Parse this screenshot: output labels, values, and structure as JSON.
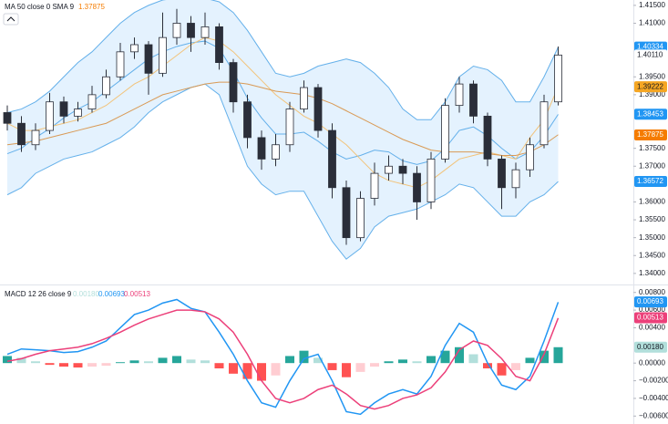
{
  "chart_data": [
    {
      "type": "candlestick",
      "title": "MA 50 close 0 SMA 9",
      "ylim": [
        1.3369,
        1.4165
      ],
      "yticks": [
        {
          "value": 1.415,
          "label": "1.41500"
        },
        {
          "value": 1.41,
          "label": "1.41000"
        },
        {
          "value": 1.395,
          "label": "1.39500"
        },
        {
          "value": 1.39,
          "label": "1.39000"
        },
        {
          "value": 1.375,
          "label": "1.37500"
        },
        {
          "value": 1.37,
          "label": "1.37000"
        },
        {
          "value": 1.36,
          "label": "1.36000"
        },
        {
          "value": 1.355,
          "label": "1.35500"
        },
        {
          "value": 1.35,
          "label": "1.35000"
        },
        {
          "value": 1.345,
          "label": "1.34500"
        },
        {
          "value": 1.34,
          "label": "1.34000"
        }
      ],
      "up_color": "#ffffff",
      "down_color": "#2a2e39",
      "outline_color": "#2a2e39",
      "open": [
        1.385,
        1.382,
        1.376,
        1.38,
        1.388,
        1.384,
        1.386,
        1.39,
        1.395,
        1.402,
        1.404,
        1.396,
        1.406,
        1.41,
        1.406,
        1.409,
        1.399,
        1.388,
        1.378,
        1.372,
        1.376,
        1.386,
        1.392,
        1.38,
        1.364,
        1.35,
        1.361,
        1.368,
        1.37,
        1.368,
        1.36,
        1.372,
        1.387,
        1.393,
        1.384,
        1.372,
        1.364,
        1.369,
        1.376,
        1.388
      ],
      "high": [
        1.387,
        1.384,
        1.382,
        1.3905,
        1.3895,
        1.388,
        1.3925,
        1.397,
        1.4045,
        1.406,
        1.405,
        1.413,
        1.414,
        1.412,
        1.413,
        1.41,
        1.4,
        1.39,
        1.38,
        1.379,
        1.388,
        1.394,
        1.393,
        1.382,
        1.366,
        1.363,
        1.371,
        1.373,
        1.372,
        1.37,
        1.374,
        1.389,
        1.395,
        1.394,
        1.385,
        1.373,
        1.371,
        1.378,
        1.39,
        1.4035
      ],
      "low": [
        1.38,
        1.374,
        1.3745,
        1.379,
        1.382,
        1.3825,
        1.385,
        1.389,
        1.394,
        1.4,
        1.39,
        1.395,
        1.404,
        1.402,
        1.404,
        1.397,
        1.385,
        1.375,
        1.369,
        1.37,
        1.374,
        1.385,
        1.378,
        1.361,
        1.348,
        1.349,
        1.359,
        1.366,
        1.365,
        1.355,
        1.358,
        1.371,
        1.385,
        1.382,
        1.37,
        1.358,
        1.361,
        1.367,
        1.375,
        1.387
      ],
      "close": [
        1.382,
        1.376,
        1.38,
        1.388,
        1.384,
        1.386,
        1.39,
        1.395,
        1.402,
        1.404,
        1.396,
        1.406,
        1.41,
        1.406,
        1.409,
        1.399,
        1.388,
        1.378,
        1.372,
        1.376,
        1.386,
        1.392,
        1.38,
        1.364,
        1.35,
        1.361,
        1.368,
        1.37,
        1.368,
        1.36,
        1.372,
        1.387,
        1.393,
        1.384,
        1.372,
        1.364,
        1.369,
        1.376,
        1.388,
        1.4011
      ],
      "band_fill": "rgba(33,150,243,0.12)",
      "series": [
        {
          "color": "#64b0ea",
          "values": [
            1.385,
            1.386,
            1.388,
            1.391,
            1.395,
            1.399,
            1.402,
            1.406,
            1.41,
            1.413,
            1.415,
            1.4165,
            1.417,
            1.417,
            1.417,
            1.416,
            1.413,
            1.408,
            1.402,
            1.396,
            1.395,
            1.396,
            1.398,
            1.399,
            1.4,
            1.399,
            1.396,
            1.392,
            1.386,
            1.383,
            1.383,
            1.388,
            1.395,
            1.398,
            1.397,
            1.394,
            1.388,
            1.388,
            1.395,
            1.4033
          ]
        },
        {
          "color": "#64b0ea",
          "values": [
            1.362,
            1.364,
            1.368,
            1.37,
            1.372,
            1.373,
            1.374,
            1.376,
            1.378,
            1.381,
            1.385,
            1.388,
            1.39,
            1.392,
            1.393,
            1.39,
            1.38,
            1.37,
            1.365,
            1.362,
            1.363,
            1.363,
            1.356,
            1.349,
            1.344,
            1.347,
            1.353,
            1.356,
            1.357,
            1.358,
            1.36,
            1.362,
            1.365,
            1.364,
            1.36,
            1.356,
            1.356,
            1.36,
            1.362,
            1.3657
          ]
        },
        {
          "color": "#64b0ea",
          "values": [
            1.3735,
            1.375,
            1.378,
            1.3805,
            1.3835,
            1.386,
            1.388,
            1.391,
            1.394,
            1.397,
            1.4,
            1.402,
            1.4035,
            1.4045,
            1.405,
            1.403,
            1.3965,
            1.389,
            1.3835,
            1.379,
            1.379,
            1.3795,
            1.377,
            1.374,
            1.372,
            1.373,
            1.3745,
            1.374,
            1.3715,
            1.3705,
            1.3715,
            1.375,
            1.38,
            1.381,
            1.3785,
            1.375,
            1.372,
            1.374,
            1.3785,
            1.3845
          ]
        },
        {
          "color": "#f2c37a",
          "values": [
            1.382,
            1.38,
            1.38,
            1.381,
            1.382,
            1.383,
            1.385,
            1.387,
            1.39,
            1.393,
            1.395,
            1.398,
            1.401,
            1.404,
            1.406,
            1.405,
            1.402,
            1.398,
            1.394,
            1.39,
            1.387,
            1.384,
            1.382,
            1.379,
            1.376,
            1.372,
            1.368,
            1.366,
            1.365,
            1.364,
            1.366,
            1.369,
            1.372,
            1.373,
            1.374,
            1.373,
            1.372,
            1.378,
            1.383,
            1.3922
          ]
        },
        {
          "color": "#d99a55",
          "values": [
            1.376,
            1.3765,
            1.377,
            1.378,
            1.379,
            1.38,
            1.381,
            1.382,
            1.384,
            1.386,
            1.388,
            1.39,
            1.391,
            1.392,
            1.393,
            1.3935,
            1.3935,
            1.393,
            1.392,
            1.391,
            1.3905,
            1.39,
            1.389,
            1.3875,
            1.3855,
            1.3835,
            1.3815,
            1.3795,
            1.3775,
            1.376,
            1.3745,
            1.374,
            1.374,
            1.374,
            1.3735,
            1.373,
            1.373,
            1.374,
            1.376,
            1.3788
          ]
        }
      ],
      "price_tags": [
        {
          "value": 1.40334,
          "label": "1.40334",
          "color": "#2196f3",
          "text_color": "#ffffff"
        },
        {
          "value": 1.4011,
          "label": "1.40110",
          "color": "#ffffff",
          "text_color": "#131722"
        },
        {
          "value": 1.39222,
          "label": "1.39222",
          "color": "#f5a623",
          "text_color": "#131722"
        },
        {
          "value": 1.38453,
          "label": "1.38453",
          "color": "#2196f3",
          "text_color": "#ffffff"
        },
        {
          "value": 1.37875,
          "label": "1.37875",
          "color": "#f57c00",
          "text_color": "#ffffff"
        },
        {
          "value": 1.36572,
          "label": "1.36572",
          "color": "#2196f3",
          "text_color": "#ffffff"
        }
      ],
      "legend_values": [
        4
      ]
    },
    {
      "type": "macd",
      "title": "MACD 12 26 close 9",
      "ylim": [
        -0.0069,
        0.0088
      ],
      "yticks": [
        {
          "value": 0.008,
          "label": "0.00800"
        },
        {
          "value": 0.006,
          "label": "0.00600"
        },
        {
          "value": 0.004,
          "label": "0.00400"
        },
        {
          "value": 0,
          "label": "0.00000"
        },
        {
          "value": -0.002,
          "label": "−0.00200"
        },
        {
          "value": -0.004,
          "label": "−0.00400"
        },
        {
          "value": -0.006,
          "label": "−0.00600"
        }
      ],
      "histogram": [
        0.0008,
        0.0006,
        0.0002,
        -0.0002,
        -0.0004,
        -0.0005,
        -0.0004,
        -0.0003,
        0.0001,
        0.0003,
        0.0002,
        0.0006,
        0.0008,
        0.0004,
        0.0003,
        -0.0006,
        -0.0012,
        -0.0018,
        -0.002,
        -0.0014,
        0.0008,
        0.0014,
        0.0006,
        -0.0008,
        -0.0016,
        -0.001,
        -0.0004,
        0.0002,
        0.0004,
        0.0002,
        0.0008,
        0.0014,
        0.0018,
        0.001,
        -0.0006,
        -0.0014,
        -0.0008,
        0.0006,
        0.0014,
        0.0018
      ],
      "histogram_colors": [
        "#26a69a",
        "#b2dfdb",
        "#ff5252",
        "#ffcdd2"
      ],
      "series": [
        {
          "color": "#2196f3",
          "values": [
            0.001,
            0.0016,
            0.0015,
            0.0014,
            0.0012,
            0.0013,
            0.0018,
            0.0025,
            0.004,
            0.0055,
            0.006,
            0.0068,
            0.0072,
            0.0062,
            0.0058,
            0.0035,
            0.001,
            -0.002,
            -0.0045,
            -0.005,
            -0.002,
            0.0005,
            0.001,
            -0.002,
            -0.0055,
            -0.0058,
            -0.0045,
            -0.0035,
            -0.003,
            -0.0035,
            -0.0015,
            0.002,
            0.0045,
            0.0035,
            0.0,
            -0.0025,
            -0.003,
            -0.0015,
            0.0025,
            0.0069
          ]
        },
        {
          "color": "#ec407a",
          "values": [
            0.0002,
            0.0005,
            0.001,
            0.0014,
            0.0016,
            0.0018,
            0.0022,
            0.0028,
            0.0035,
            0.0043,
            0.005,
            0.0055,
            0.006,
            0.006,
            0.0058,
            0.005,
            0.0035,
            0.001,
            -0.002,
            -0.004,
            -0.0045,
            -0.004,
            -0.003,
            -0.0025,
            -0.0035,
            -0.0048,
            -0.0052,
            -0.0048,
            -0.004,
            -0.0036,
            -0.0028,
            -0.001,
            0.0015,
            0.0025,
            0.002,
            0.0005,
            -0.0015,
            -0.002,
            0.001,
            0.0051
          ]
        }
      ],
      "price_tags": [
        {
          "value": 0.00693,
          "label": "0.00693",
          "color": "#2196f3",
          "text_color": "#ffffff"
        },
        {
          "value": 0.00513,
          "label": "0.00513",
          "color": "#ec407a",
          "text_color": "#ffffff"
        },
        {
          "value": 0.0018,
          "label": "0.00180",
          "color": "#b2dfdb",
          "text_color": "#131722"
        }
      ],
      "legend_values": [
        2,
        0,
        1
      ]
    }
  ]
}
